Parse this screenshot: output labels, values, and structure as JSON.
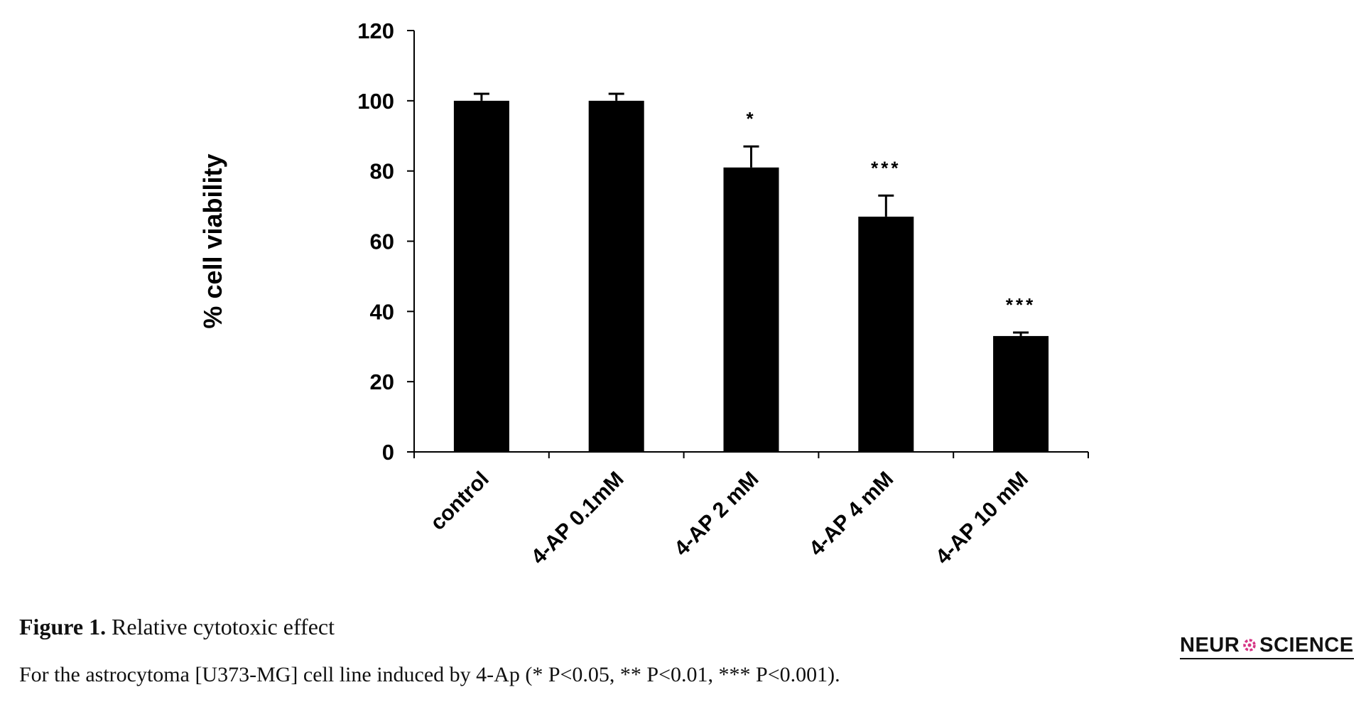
{
  "chart_data": {
    "type": "bar",
    "categories": [
      "control",
      "4-AP 0.1mM",
      "4-AP 2 mM",
      "4-AP 4 mM",
      "4-AP 10 mM"
    ],
    "values": [
      100,
      100,
      81,
      67,
      33
    ],
    "errors": [
      2,
      2,
      6,
      6,
      1
    ],
    "annotations": [
      "",
      "",
      "*",
      "***",
      "***"
    ],
    "ylabel": "% cell viability",
    "xlabel": "",
    "ylim": [
      0,
      120
    ],
    "yticks": [
      0,
      20,
      40,
      60,
      80,
      100,
      120
    ],
    "bar_color": "#000000",
    "grid": false
  },
  "caption": {
    "figure_label": "Figure 1.",
    "title": "Relative cytotoxic effect",
    "text": "For the astrocytoma [U373-MG] cell line induced by 4-Ap (* P<0.05, ** P<0.01, *** P<0.001)."
  },
  "logo": {
    "text_left": "NEUR",
    "text_right": "SCIENCE",
    "mark_color": "#d63384"
  }
}
